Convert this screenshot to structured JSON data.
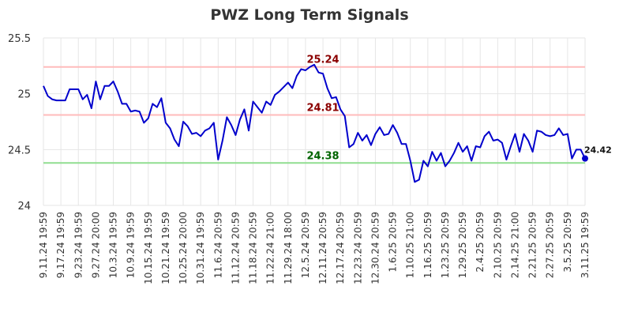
{
  "chart_data": {
    "type": "line",
    "title": "PWZ Long Term Signals",
    "xlabel": "",
    "ylabel": "",
    "ylim": [
      24,
      25.5
    ],
    "yticks": [
      "24",
      "24.5",
      "25",
      "25.5"
    ],
    "grid": true,
    "x_tick_labels": [
      "9.11.24 19:59",
      "9.17.24 19:59",
      "9.23.24 19:59",
      "9.27.24 20:00",
      "10.3.24 19:59",
      "10.9.24 19:59",
      "10.15.24 19:59",
      "10.21.24 19:59",
      "10.25.24 20:00",
      "10.31.24 19:59",
      "11.6.24 20:59",
      "11.12.24 20:59",
      "11.18.24 20:59",
      "11.22.24 21:00",
      "11.29.24 18:00",
      "12.5.24 20:59",
      "12.11.24 20:59",
      "12.17.24 20:59",
      "12.23.24 20:59",
      "12.30.24 20:59",
      "1.6.25 20:59",
      "1.10.25 21:00",
      "1.16.25 20:59",
      "1.23.25 20:59",
      "1.29.25 20:59",
      "2.4.25 20:59",
      "2.10.25 20:59",
      "2.14.25 21:00",
      "2.21.25 20:59",
      "2.27.25 20:59",
      "3.5.25 20:59",
      "3.11.25 19:59"
    ],
    "reference_lines": [
      {
        "value": 25.24,
        "label": "25.24",
        "line_color": "#ffbbbb",
        "label_color": "#8b0000"
      },
      {
        "value": 24.81,
        "label": "24.81",
        "line_color": "#ffbbbb",
        "label_color": "#8b0000"
      },
      {
        "value": 24.38,
        "label": "24.38",
        "line_color": "#90dd90",
        "label_color": "#006400"
      }
    ],
    "last_value_label": "24.42",
    "series": [
      {
        "color": "#0000cc",
        "values": [
          25.07,
          24.98,
          24.95,
          24.94,
          24.94,
          24.94,
          25.04,
          25.04,
          25.04,
          24.95,
          24.99,
          24.87,
          25.11,
          24.95,
          25.07,
          25.07,
          25.11,
          25.02,
          24.91,
          24.91,
          24.84,
          24.85,
          24.84,
          24.74,
          24.78,
          24.91,
          24.88,
          24.96,
          24.74,
          24.69,
          24.59,
          24.53,
          24.75,
          24.71,
          24.64,
          24.65,
          24.62,
          24.67,
          24.69,
          24.74,
          24.41,
          24.58,
          24.79,
          24.72,
          24.63,
          24.77,
          24.86,
          24.67,
          24.93,
          24.88,
          24.83,
          24.93,
          24.9,
          24.99,
          25.02,
          25.06,
          25.1,
          25.05,
          25.16,
          25.22,
          25.21,
          25.24,
          25.26,
          25.19,
          25.18,
          25.05,
          24.96,
          24.97,
          24.86,
          24.8,
          24.52,
          24.55,
          24.65,
          24.58,
          24.63,
          24.54,
          24.64,
          24.7,
          24.63,
          24.64,
          24.72,
          24.65,
          24.55,
          24.55,
          24.4,
          24.21,
          24.23,
          24.4,
          24.35,
          24.48,
          24.4,
          24.47,
          24.35,
          24.4,
          24.47,
          24.56,
          24.48,
          24.53,
          24.4,
          24.53,
          24.52,
          24.62,
          24.66,
          24.58,
          24.59,
          24.56,
          24.41,
          24.53,
          24.64,
          24.48,
          24.64,
          24.58,
          24.48,
          24.67,
          24.66,
          24.63,
          24.62,
          24.63,
          24.69,
          24.63,
          24.64,
          24.42,
          24.5,
          24.5,
          24.42
        ]
      }
    ]
  }
}
